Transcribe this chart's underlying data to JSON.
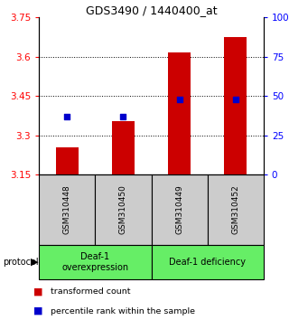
{
  "title": "GDS3490 / 1440400_at",
  "samples": [
    "GSM310448",
    "GSM310450",
    "GSM310449",
    "GSM310452"
  ],
  "transformed_counts": [
    3.255,
    3.355,
    3.615,
    3.675
  ],
  "percentile_ranks": [
    37,
    37,
    48,
    48
  ],
  "ylim_left": [
    3.15,
    3.75
  ],
  "ylim_right": [
    0,
    100
  ],
  "yticks_left": [
    3.15,
    3.3,
    3.45,
    3.6,
    3.75
  ],
  "ytick_labels_left": [
    "3.15",
    "3.3",
    "3.45",
    "3.6",
    "3.75"
  ],
  "yticks_right": [
    0,
    25,
    50,
    75,
    100
  ],
  "ytick_labels_right": [
    "0",
    "25",
    "50",
    "75",
    "100%"
  ],
  "bar_color": "#cc0000",
  "dot_color": "#0000cc",
  "bar_width": 0.4,
  "protocol_labels": [
    "Deaf-1\noverexpression",
    "Deaf-1 deficiency"
  ],
  "protocol_color": "#66ee66",
  "sample_bg_color": "#cccccc",
  "legend_bar_label": "transformed count",
  "legend_dot_label": "percentile rank within the sample"
}
